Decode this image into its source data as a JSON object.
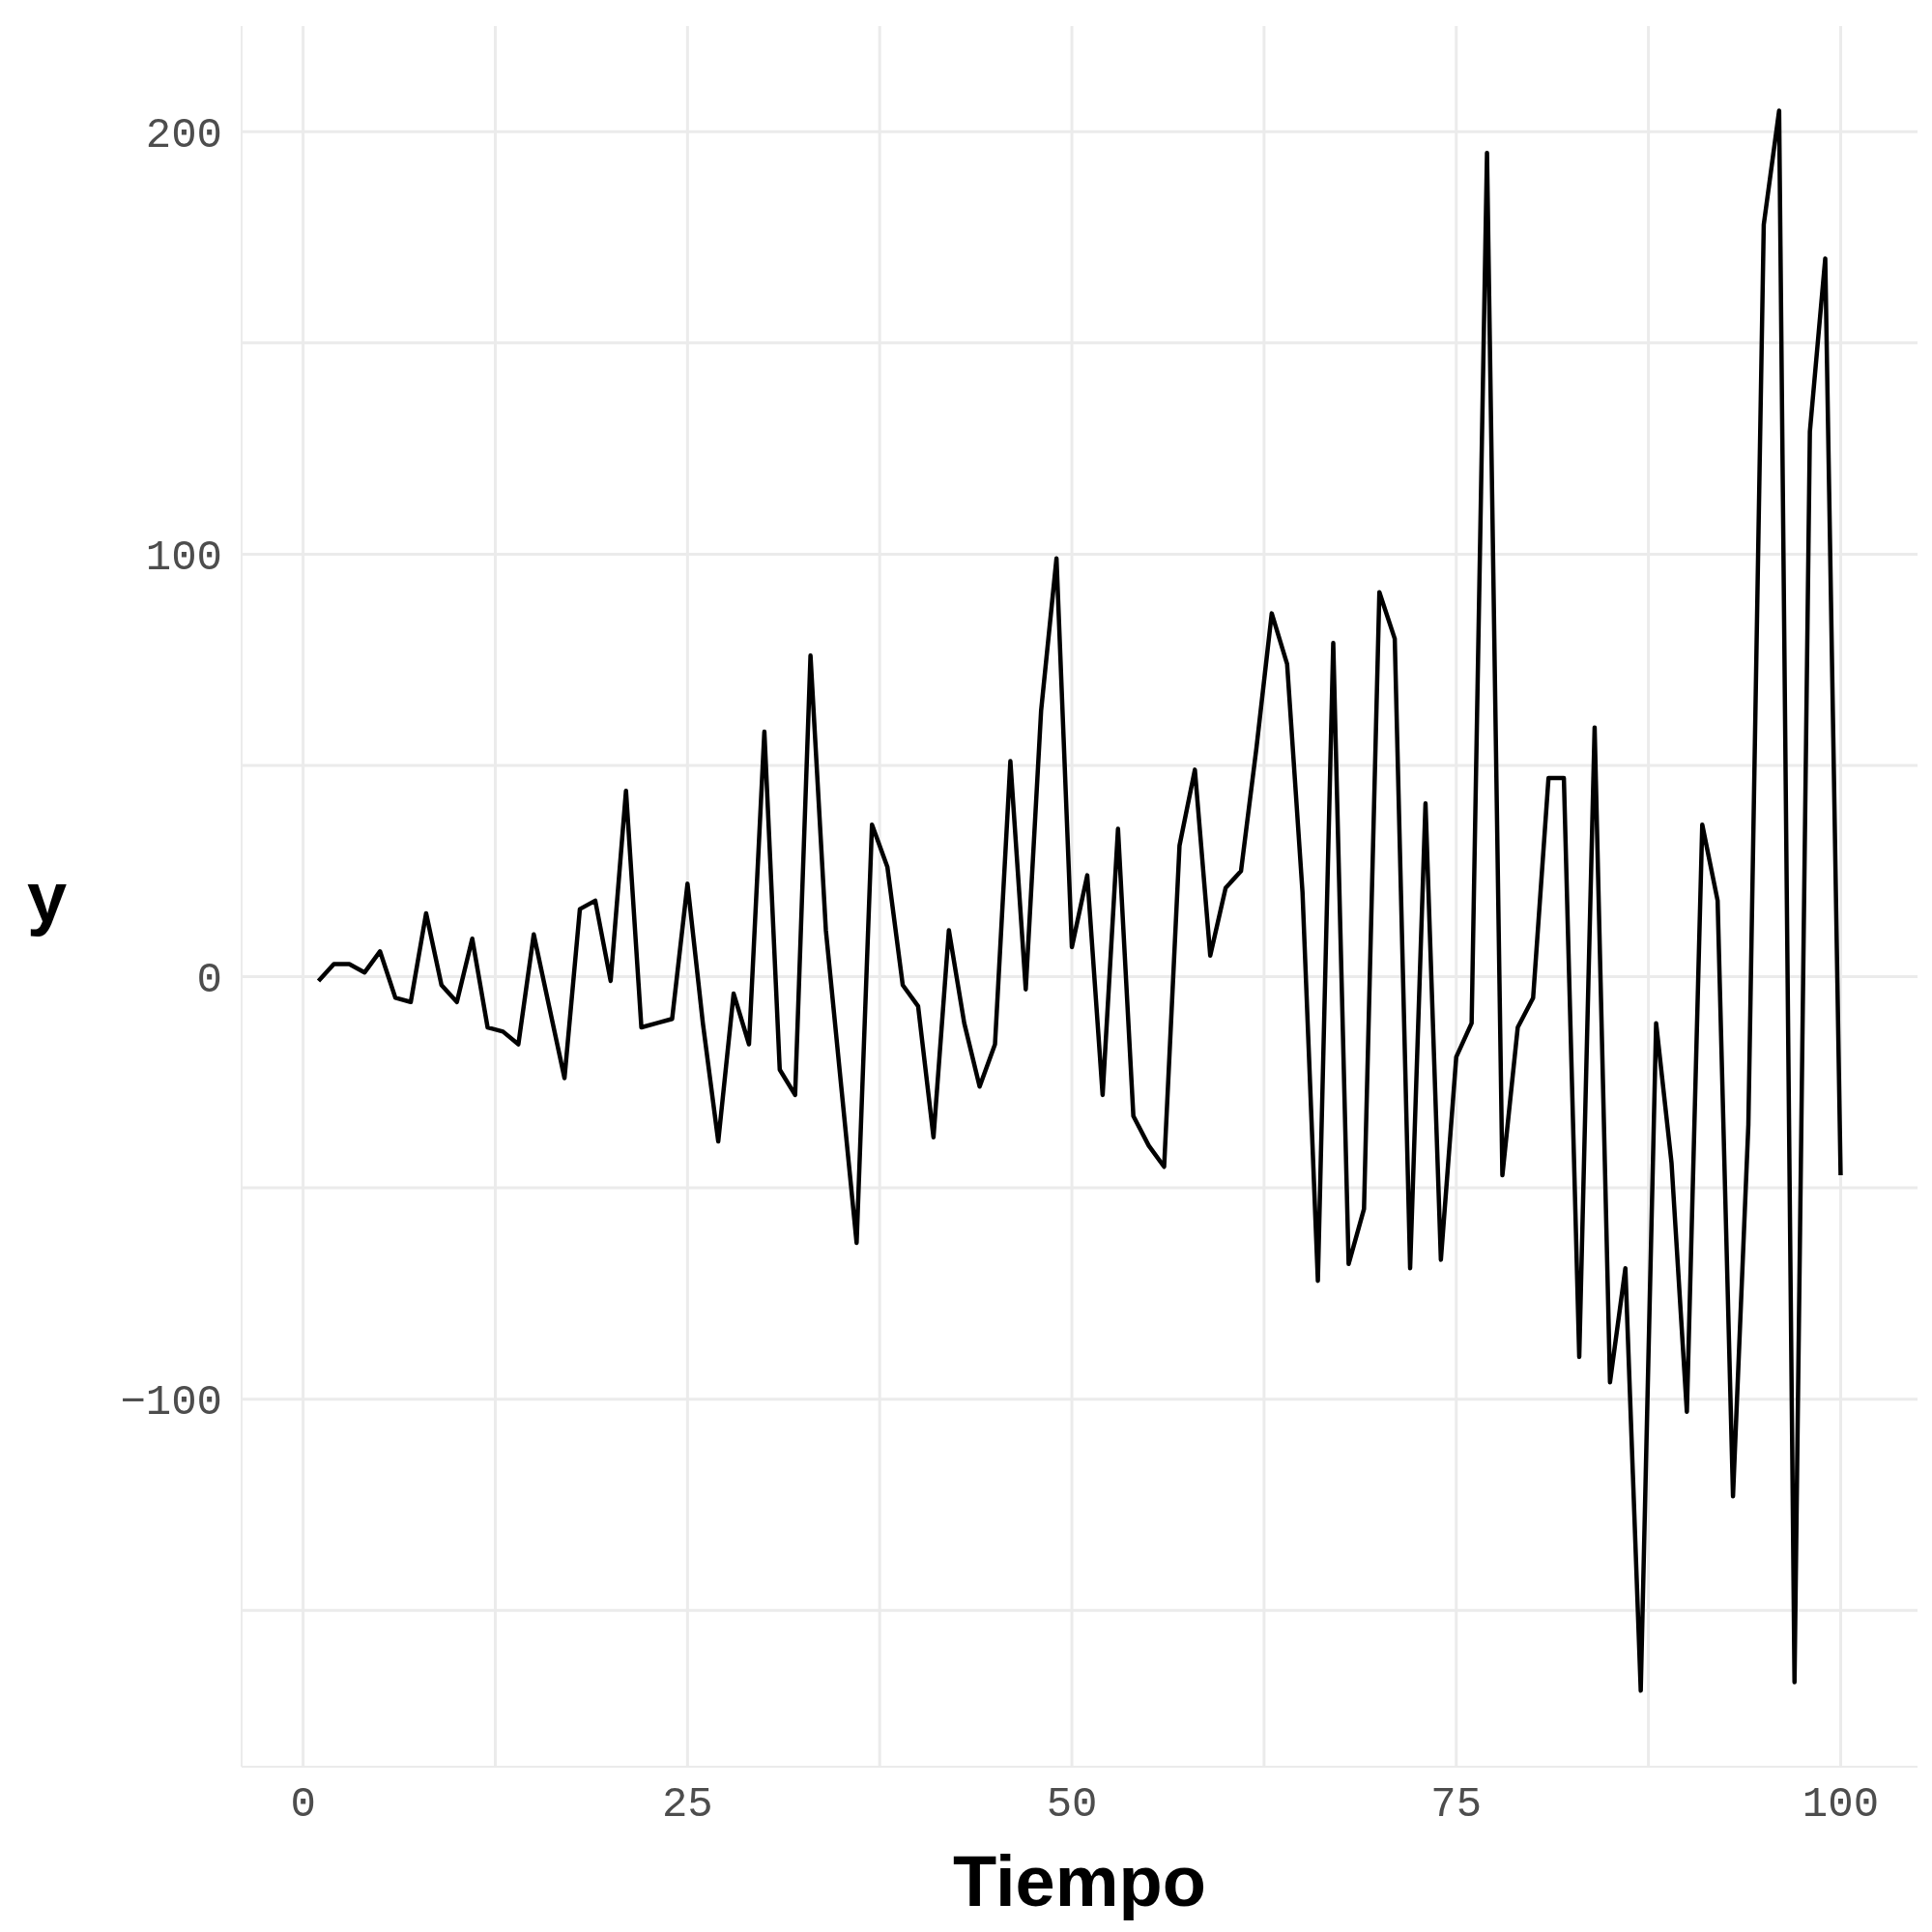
{
  "chart_data": {
    "type": "line",
    "xlabel": "Tiempo",
    "ylabel": "y",
    "x": [
      1,
      2,
      3,
      4,
      5,
      6,
      7,
      8,
      9,
      10,
      11,
      12,
      13,
      14,
      15,
      16,
      17,
      18,
      19,
      20,
      21,
      22,
      23,
      24,
      25,
      26,
      27,
      28,
      29,
      30,
      31,
      32,
      33,
      34,
      35,
      36,
      37,
      38,
      39,
      40,
      41,
      42,
      43,
      44,
      45,
      46,
      47,
      48,
      49,
      50,
      51,
      52,
      53,
      54,
      55,
      56,
      57,
      58,
      59,
      60,
      61,
      62,
      63,
      64,
      65,
      66,
      67,
      68,
      69,
      70,
      71,
      72,
      73,
      74,
      75,
      76,
      77,
      78,
      79,
      80,
      81,
      82,
      83,
      84,
      85,
      86,
      87,
      88,
      89,
      90,
      91,
      92,
      93,
      94,
      95,
      96,
      97,
      98,
      99,
      100
    ],
    "series": [
      {
        "color": "#000000",
        "values": [
          -1,
          3,
          3,
          1,
          6,
          -5,
          -6,
          15,
          -2,
          -6,
          9,
          -12,
          -13,
          -16,
          10,
          -7,
          -24,
          16,
          18,
          -1,
          44,
          -12,
          -11,
          -10,
          22,
          -11,
          -39,
          -4,
          -16,
          58,
          -22,
          -28,
          76,
          11,
          -26,
          -63,
          36,
          26,
          -2,
          -7,
          -38,
          11,
          -11,
          -26,
          -16,
          51,
          -3,
          63,
          99,
          7,
          24,
          -28,
          35,
          -33,
          -40,
          -45,
          31,
          49,
          5,
          21,
          25,
          54,
          86,
          74,
          20,
          -72,
          79,
          -68,
          -55,
          91,
          80,
          -69,
          41,
          -67,
          -19,
          -11,
          195,
          -47,
          -12,
          -5,
          47,
          47,
          -90,
          59,
          -96,
          -69,
          -169,
          -11,
          -44,
          -103,
          36,
          18,
          -123,
          -35,
          178,
          205,
          -167,
          129,
          170,
          -47
        ]
      }
    ],
    "xlim": [
      -4,
      105
    ],
    "ylim": [
      -187,
      225
    ],
    "xticks": [
      0,
      {
        "value": 12.5,
        "label": null
      },
      25,
      {
        "value": 37.5,
        "label": null
      },
      50,
      {
        "value": 62.5,
        "label": null
      },
      75,
      {
        "value": 87.5,
        "label": null
      },
      100
    ],
    "yticks": [
      {
        "value": -150,
        "label": null
      },
      -100,
      {
        "value": -50,
        "label": null
      },
      0,
      {
        "value": 50,
        "label": null
      },
      100,
      {
        "value": 150,
        "label": null
      },
      200
    ],
    "grid": true,
    "line_style": "solid",
    "marker": "none"
  }
}
